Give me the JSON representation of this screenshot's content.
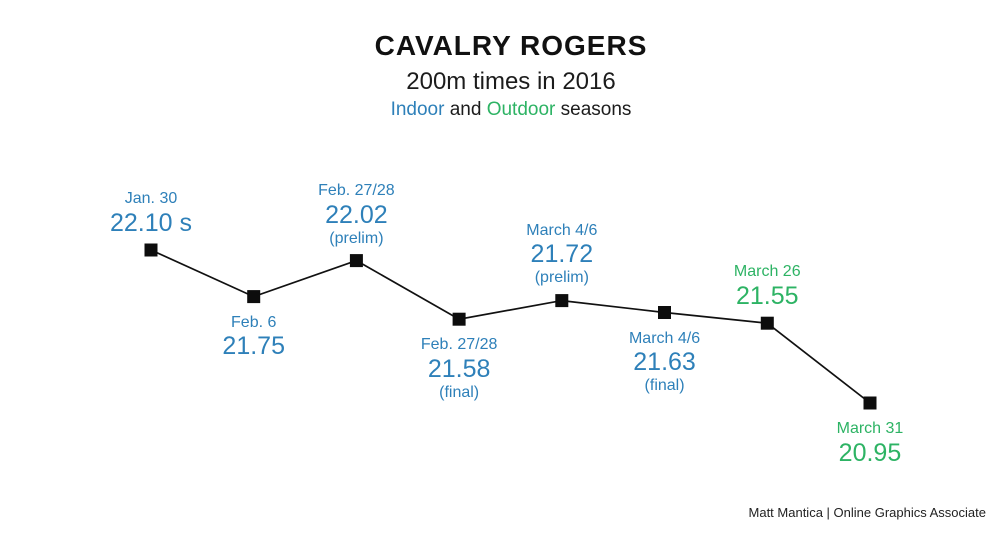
{
  "header": {
    "title": "CAVALRY ROGERS",
    "subtitle": "200m times in 2016",
    "season_note": {
      "indoor_label": "Indoor",
      "conjunction": "and",
      "outdoor_label": "Outdoor",
      "suffix": "seasons"
    }
  },
  "footer": {
    "credit": "Matt Mantica | Online Graphics Associate"
  },
  "colors": {
    "indoor": "#2e80b9",
    "outdoor": "#2db364",
    "line": "#111111",
    "marker": "#0d0d0d"
  },
  "chart_data": {
    "type": "line",
    "title": "CAVALRY ROGERS",
    "subtitle": "200m times in 2016",
    "note": "Indoor and Outdoor seasons",
    "unit": "s",
    "ylim": [
      20.95,
      22.1
    ],
    "gridlines": false,
    "axes_visible": false,
    "marker_shape": "square",
    "points": [
      {
        "date": "Jan. 30",
        "value": 22.1,
        "display": "22.10 s",
        "round": "",
        "season": "indoor",
        "label_position": "above"
      },
      {
        "date": "Feb. 6",
        "value": 21.75,
        "display": "21.75",
        "round": "",
        "season": "indoor",
        "label_position": "below"
      },
      {
        "date": "Feb. 27/28",
        "value": 22.02,
        "display": "22.02",
        "round": "(prelim)",
        "season": "indoor",
        "label_position": "above"
      },
      {
        "date": "Feb. 27/28",
        "value": 21.58,
        "display": "21.58",
        "round": "(final)",
        "season": "indoor",
        "label_position": "below"
      },
      {
        "date": "March 4/6",
        "value": 21.72,
        "display": "21.72",
        "round": "(prelim)",
        "season": "indoor",
        "label_position": "above"
      },
      {
        "date": "March 4/6",
        "value": 21.63,
        "display": "21.63",
        "round": "(final)",
        "season": "indoor",
        "label_position": "below"
      },
      {
        "date": "March 26",
        "value": 21.55,
        "display": "21.55",
        "round": "",
        "season": "outdoor",
        "label_position": "above"
      },
      {
        "date": "March 31",
        "value": 20.95,
        "display": "20.95",
        "round": "",
        "season": "outdoor",
        "label_position": "below"
      }
    ]
  }
}
